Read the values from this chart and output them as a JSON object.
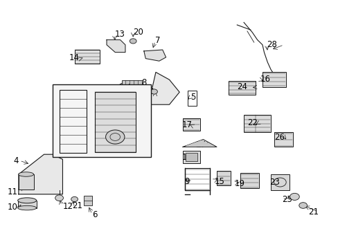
{
  "background_color": "#ffffff",
  "fig_width": 4.89,
  "fig_height": 3.6,
  "dpi": 100,
  "line_color": "#1a1a1a",
  "text_color": "#000000",
  "font_size": 8.5
}
